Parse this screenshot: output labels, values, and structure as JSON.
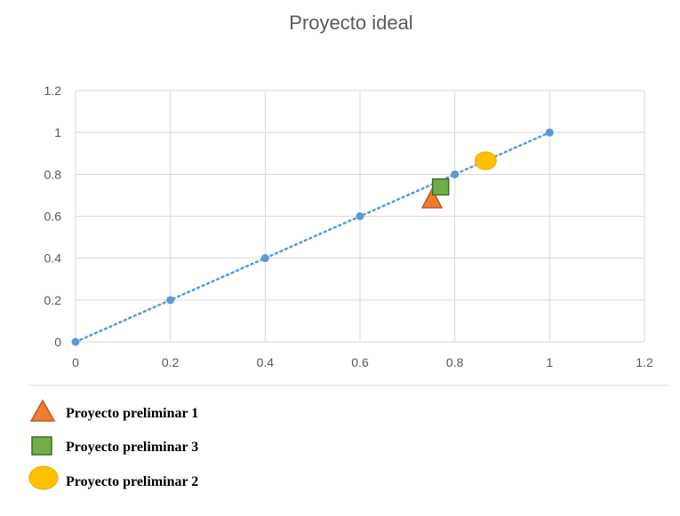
{
  "chart_data": {
    "type": "scatter",
    "title": "Proyecto ideal",
    "xlabel": "",
    "ylabel": "",
    "xlim": [
      0,
      1.2
    ],
    "ylim": [
      0,
      1.2
    ],
    "x_ticks": [
      "0",
      "0.2",
      "0.4",
      "0.6",
      "0.8",
      "1",
      "1.2"
    ],
    "y_ticks": [
      "0",
      "0.2",
      "0.4",
      "0.6",
      "0.8",
      "1",
      "1.2"
    ],
    "grid": true,
    "legend_position": "bottom-left",
    "series": [
      {
        "marker": "circle",
        "color": "#5b9bd5",
        "trendline": "dotted",
        "points": [
          [
            0,
            0
          ],
          [
            0.2,
            0.2
          ],
          [
            0.4,
            0.4
          ],
          [
            0.6,
            0.6
          ],
          [
            0.8,
            0.8
          ],
          [
            1,
            1
          ]
        ]
      },
      {
        "name": "Proyecto preliminar 1",
        "marker": "triangle",
        "color": "#ed7d31",
        "stroke": "#c0582a",
        "points": [
          [
            0.752,
            0.675
          ]
        ]
      },
      {
        "name": "Proyecto preliminar 3",
        "marker": "square",
        "color": "#70ad47",
        "stroke": "#3f6e26",
        "points": [
          [
            0.77,
            0.74
          ]
        ]
      },
      {
        "name": "Proyecto preliminar 2",
        "marker": "ellipse",
        "color": "#ffc000",
        "stroke": "#f0a800",
        "points": [
          [
            0.865,
            0.865
          ]
        ]
      }
    ]
  }
}
